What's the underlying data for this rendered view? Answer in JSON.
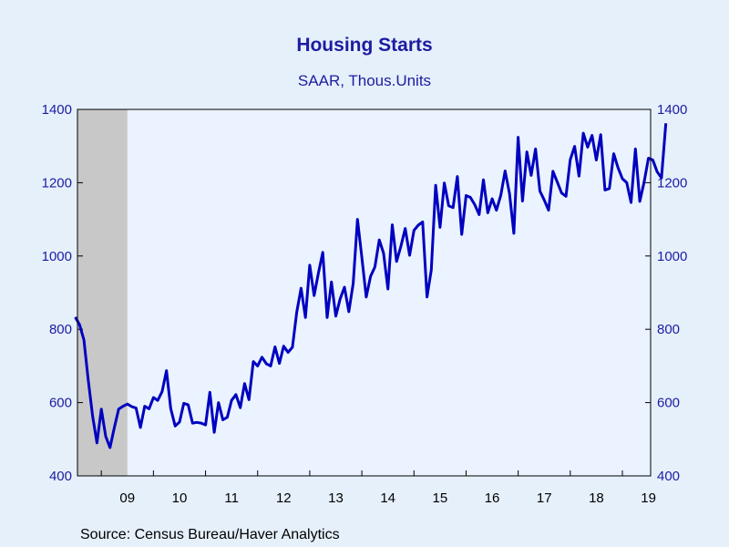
{
  "chart_data": {
    "type": "line",
    "title": "Housing Starts",
    "subtitle": "SAAR, Thous.Units",
    "source": "Source:  Census Bureau/Haver Analytics",
    "ylim": [
      400,
      1400
    ],
    "yticks": [
      400,
      600,
      800,
      1000,
      1200,
      1400
    ],
    "xlim": [
      2008.542,
      2019.542
    ],
    "xticks": [
      {
        "label": "09",
        "year": 2009
      },
      {
        "label": "10",
        "year": 2010
      },
      {
        "label": "11",
        "year": 2011
      },
      {
        "label": "12",
        "year": 2012
      },
      {
        "label": "13",
        "year": 2013
      },
      {
        "label": "14",
        "year": 2014
      },
      {
        "label": "15",
        "year": 2015
      },
      {
        "label": "16",
        "year": 2016
      },
      {
        "label": "17",
        "year": 2017
      },
      {
        "label": "18",
        "year": 2018
      },
      {
        "label": "19",
        "year": 2019
      }
    ],
    "recession": {
      "start": "2008-07",
      "end": "2009-06",
      "color": "#c8c8c8"
    },
    "plot_background": "#eaf3ff",
    "line_color": "#0000c0",
    "dual_y_axis": true,
    "grid": false,
    "series": [
      {
        "start": "2008-07",
        "frequency": "monthly",
        "values": [
          833,
          812,
          771,
          660,
          562,
          490,
          582,
          508,
          477,
          532,
          582,
          590,
          596,
          589,
          585,
          532,
          590,
          583,
          614,
          606,
          630,
          687,
          583,
          536,
          547,
          598,
          594,
          544,
          546,
          544,
          539,
          628,
          519,
          600,
          553,
          560,
          606,
          622,
          586,
          652,
          608,
          712,
          700,
          724,
          706,
          700,
          752,
          707,
          754,
          737,
          751,
          846,
          912,
          832,
          975,
          892,
          953,
          1010,
          832,
          929,
          836,
          883,
          915,
          848,
          925,
          1100,
          996,
          888,
          944,
          970,
          1044,
          1008,
          910,
          1085,
          985,
          1027,
          1075,
          1002,
          1070,
          1084,
          1093,
          888,
          962,
          1193,
          1078,
          1199,
          1137,
          1132,
          1217,
          1059,
          1165,
          1160,
          1140,
          1113,
          1208,
          1118,
          1156,
          1125,
          1166,
          1232,
          1171,
          1062,
          1324,
          1150,
          1284,
          1220,
          1292,
          1177,
          1153,
          1125,
          1231,
          1202,
          1172,
          1163,
          1263,
          1299,
          1218,
          1335,
          1297,
          1329,
          1262,
          1331,
          1180,
          1184,
          1279,
          1241,
          1211,
          1200,
          1146,
          1292,
          1149,
          1201,
          1267,
          1262,
          1230,
          1213,
          1362
        ]
      }
    ]
  }
}
